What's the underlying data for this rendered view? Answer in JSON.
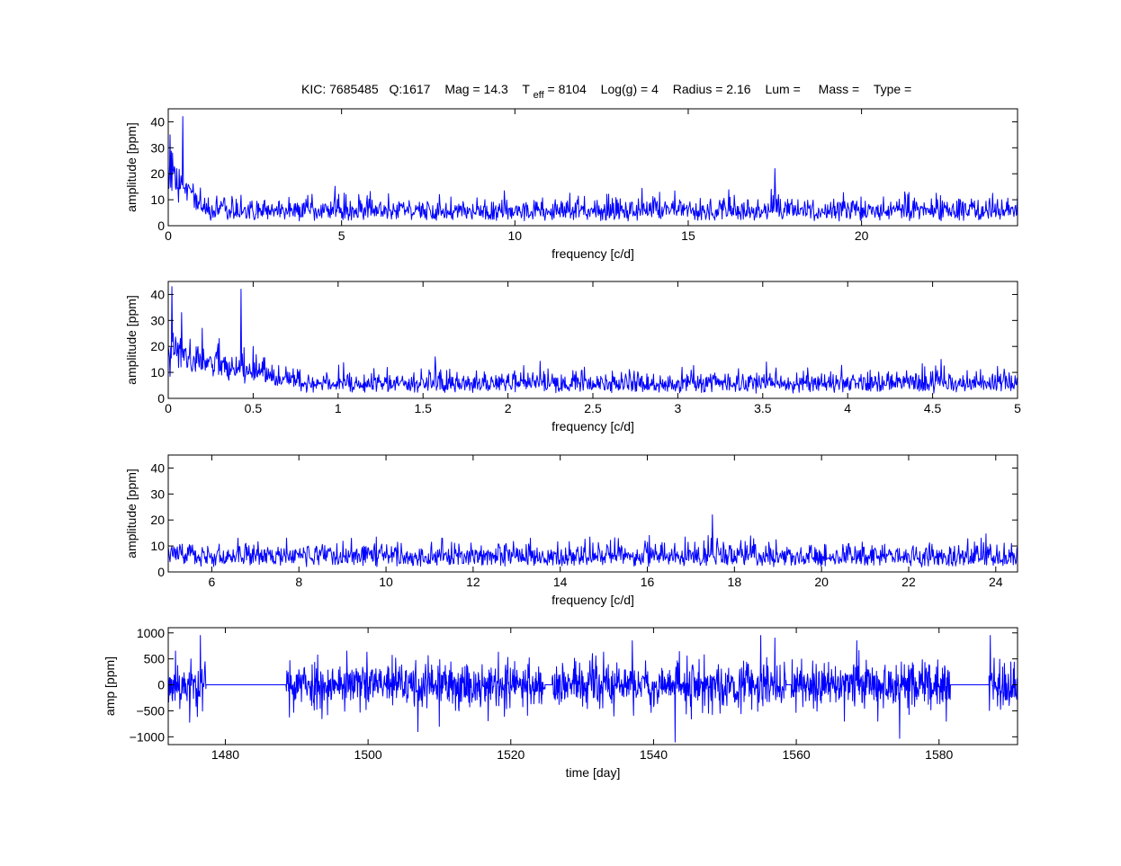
{
  "figure": {
    "title_parts": {
      "kic": "KIC: 7685485",
      "quarter": "Q:1617",
      "mag": "Mag = 14.3",
      "teff_prefix": "T",
      "teff_sub": "eff",
      "teff_value": " = 8104",
      "logg": "Log(g) = 4",
      "radius": "Radius = 2.16",
      "lum": "Lum =",
      "mass": "Mass =",
      "type": "Type ="
    }
  },
  "chart_data": [
    {
      "type": "line",
      "xlabel": "frequency  [c/d]",
      "ylabel": "amplitude  [ppm]",
      "xlim": [
        0,
        24.5
      ],
      "ylim": [
        0,
        45
      ],
      "xticks": [
        0,
        5,
        10,
        15,
        20
      ],
      "xtick_labels": [
        "0",
        "5",
        "10",
        "15",
        "20"
      ],
      "yticks": [
        0,
        10,
        20,
        30,
        40
      ],
      "ytick_labels": [
        "0",
        "10",
        "20",
        "30",
        "40"
      ],
      "series": [
        {
          "color": "#0000ff",
          "noise": {
            "seed": 11,
            "baseline": 4.5,
            "spread": 4.5,
            "low_freq_boost": [
              0,
              1.2,
              14
            ]
          },
          "peaks": [
            [
              0.05,
              35
            ],
            [
              0.12,
              28
            ],
            [
              0.25,
              22
            ],
            [
              0.42,
              42
            ],
            [
              17.5,
              22
            ],
            [
              17.4,
              14
            ],
            [
              17.6,
              12
            ]
          ]
        }
      ]
    },
    {
      "type": "line",
      "xlabel": "frequency  [c/d]",
      "ylabel": "amplitude  [ppm]",
      "xlim": [
        0,
        5
      ],
      "ylim": [
        0,
        45
      ],
      "xticks": [
        0,
        0.5,
        1,
        1.5,
        2,
        2.5,
        3,
        3.5,
        4,
        4.5,
        5
      ],
      "xtick_labels": [
        "0",
        "0.5",
        "1",
        "1.5",
        "2",
        "2.5",
        "3",
        "3.5",
        "4",
        "4.5",
        "5"
      ],
      "yticks": [
        0,
        10,
        20,
        30,
        40
      ],
      "ytick_labels": [
        "0",
        "10",
        "20",
        "30",
        "40"
      ],
      "series": [
        {
          "color": "#0000ff",
          "noise": {
            "seed": 23,
            "baseline": 5.5,
            "spread": 4.0,
            "low_freq_boost": [
              0,
              0.8,
              11
            ]
          },
          "peaks": [
            [
              0.02,
              43
            ],
            [
              0.08,
              33
            ],
            [
              0.2,
              27
            ],
            [
              0.3,
              23
            ],
            [
              0.43,
              42
            ],
            [
              0.5,
              20
            ],
            [
              1.57,
              16
            ],
            [
              3.52,
              14
            ],
            [
              4.55,
              15
            ]
          ]
        }
      ]
    },
    {
      "type": "line",
      "xlabel": "frequency  [c/d]",
      "ylabel": "amplitude  [ppm]",
      "xlim": [
        5,
        24.5
      ],
      "ylim": [
        0,
        45
      ],
      "xticks": [
        6,
        8,
        10,
        12,
        14,
        16,
        18,
        20,
        22,
        24
      ],
      "xtick_labels": [
        "6",
        "8",
        "10",
        "12",
        "14",
        "16",
        "18",
        "20",
        "22",
        "24"
      ],
      "yticks": [
        0,
        10,
        20,
        30,
        40
      ],
      "ytick_labels": [
        "0",
        "10",
        "20",
        "30",
        "40"
      ],
      "series": [
        {
          "color": "#0000ff",
          "noise": {
            "seed": 37,
            "baseline": 5.0,
            "spread": 4.5,
            "low_freq_boost": [
              5,
              5,
              0
            ]
          },
          "peaks": [
            [
              17.5,
              22
            ],
            [
              17.4,
              14
            ],
            [
              17.3,
              12
            ],
            [
              17.6,
              13
            ],
            [
              6.6,
              13
            ],
            [
              9.2,
              13
            ],
            [
              11.3,
              13
            ]
          ]
        }
      ]
    },
    {
      "type": "line",
      "xlabel": "time  [day]",
      "ylabel": "amp  [ppm]",
      "xlim": [
        1472,
        1591
      ],
      "ylim": [
        -1150,
        1100
      ],
      "xticks": [
        1480,
        1500,
        1520,
        1540,
        1560,
        1580
      ],
      "xtick_labels": [
        "1480",
        "1500",
        "1520",
        "1540",
        "1560",
        "1580"
      ],
      "yticks": [
        -1000,
        -500,
        0,
        500,
        1000
      ],
      "ytick_labels": [
        "−1000",
        "−500",
        "0",
        "500",
        "1000"
      ],
      "series": [
        {
          "color": "#0000ff",
          "segments": [
            [
              1472,
              1477.3
            ],
            [
              1488.5,
              1524.8
            ],
            [
              1525.8,
              1558.6
            ],
            [
              1559.3,
              1581.6
            ],
            [
              1587,
              1591
            ]
          ],
          "gap_value": 0,
          "noise": {
            "seed": 53,
            "spread": 230
          },
          "extremes": [
            [
              1473,
              650
            ],
            [
              1475,
              -720
            ],
            [
              1476.5,
              950
            ],
            [
              1489,
              -620
            ],
            [
              1497,
              650
            ],
            [
              1507,
              -900
            ],
            [
              1510,
              -800
            ],
            [
              1537,
              850
            ],
            [
              1543,
              -1100
            ],
            [
              1555,
              950
            ],
            [
              1557,
              900
            ],
            [
              1568.5,
              850
            ],
            [
              1574.5,
              -1030
            ],
            [
              1581,
              -700
            ],
            [
              1587.2,
              950
            ]
          ]
        }
      ]
    }
  ]
}
